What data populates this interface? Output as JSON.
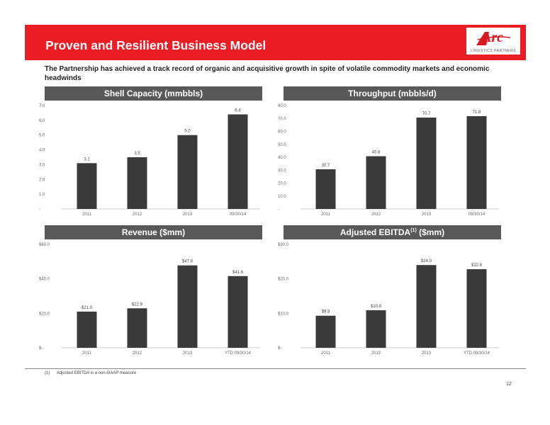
{
  "header": {
    "title": "Proven and Resilient Business Model",
    "logo_text": "Arc",
    "logo_subtext": "LOGISTICS PARTNERS"
  },
  "subtitle": "The Partnership has achieved a track record of organic and acquisitive growth in spite of volatile commodity markets and economic headwinds",
  "chart_data": [
    {
      "type": "bar",
      "title": "Shell Capacity (mmbbls)",
      "categories": [
        "2011",
        "2012",
        "2013",
        "09/30/14"
      ],
      "values": [
        3.1,
        3.5,
        5.0,
        6.4
      ],
      "value_labels": [
        "3.1",
        "3.5",
        "5.0",
        "6.4"
      ],
      "yticks": [
        "7.0",
        "6.0",
        "5.0",
        "4.0",
        "3.0",
        "2.0",
        "1.0",
        "-"
      ],
      "ylim": [
        0,
        7
      ],
      "color": "#3a3a3a"
    },
    {
      "type": "bar",
      "title": "Throughput (mbbls/d)",
      "categories": [
        "2011",
        "2012",
        "2013",
        "09/30/14"
      ],
      "values": [
        30.7,
        40.8,
        70.7,
        71.8
      ],
      "value_labels": [
        "30.7",
        "40.8",
        "70.7",
        "71.8"
      ],
      "yticks": [
        "80.0",
        "70.0",
        "60.0",
        "50.0",
        "40.0",
        "30.0",
        "20.0",
        "10.0",
        "-"
      ],
      "ylim": [
        0,
        80
      ],
      "color": "#3a3a3a"
    },
    {
      "type": "bar",
      "title": "Revenue ($mm)",
      "categories": [
        "2011",
        "2012",
        "2013",
        "YTD 09/30/14"
      ],
      "values": [
        21.0,
        22.9,
        47.8,
        41.6
      ],
      "value_labels": [
        "$21.0",
        "$22.9",
        "$47.8",
        "$41.6"
      ],
      "yticks": [
        "$60.0",
        "$40.0",
        "$20.0",
        "$-"
      ],
      "ylim": [
        0,
        60
      ],
      "color": "#3a3a3a"
    },
    {
      "type": "bar",
      "title": "Adjusted EBITDA",
      "title_sup": "(1)",
      "title_suffix": " ($mm)",
      "categories": [
        "2011",
        "2012",
        "2013",
        "YTD 09/30/14"
      ],
      "values": [
        9.3,
        10.9,
        24.0,
        22.8
      ],
      "value_labels": [
        "$9.3",
        "$10.9",
        "$24.0",
        "$22.8"
      ],
      "yticks": [
        "$30.0",
        "$20.0",
        "$10.0",
        "$-"
      ],
      "ylim": [
        0,
        30
      ],
      "color": "#3a3a3a"
    }
  ],
  "footnote": {
    "mark": "(1)",
    "text": "Adjusted EBITDA is a non-GAAP measure"
  },
  "page_number": "12"
}
